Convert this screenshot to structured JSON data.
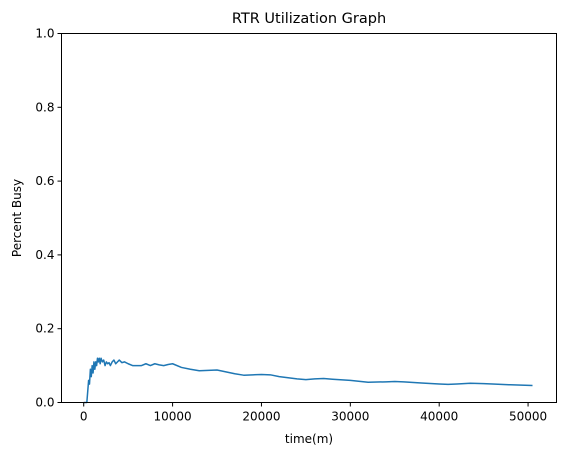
{
  "chart_data": {
    "type": "line",
    "title": "RTR Utilization Graph",
    "xlabel": "time(m)",
    "ylabel": "Percent Busy",
    "xlim": [
      -2500,
      53200
    ],
    "ylim": [
      0,
      1
    ],
    "xticks": [
      0,
      10000,
      20000,
      30000,
      40000,
      50000
    ],
    "xtick_labels": [
      "0",
      "10000",
      "20000",
      "30000",
      "40000",
      "50000"
    ],
    "yticks": [
      0,
      0.2,
      0.4,
      0.6,
      0.8,
      1.0
    ],
    "ytick_labels": [
      "0.0",
      "0.2",
      "0.4",
      "0.6",
      "0.8",
      "1.0"
    ],
    "grid": false,
    "legend": "none",
    "series": [
      {
        "color": "#1f77b4",
        "x": [
          0,
          150,
          250,
          350,
          450,
          550,
          650,
          750,
          850,
          950,
          1050,
          1150,
          1250,
          1350,
          1450,
          1550,
          1650,
          1750,
          1850,
          1950,
          2100,
          2250,
          2400,
          2550,
          2700,
          2850,
          3000,
          3200,
          3400,
          3600,
          3800,
          4000,
          4300,
          4600,
          5000,
          5500,
          6000,
          6500,
          7000,
          7500,
          8000,
          8500,
          9000,
          9500,
          10000,
          11000,
          12000,
          13000,
          14000,
          15000,
          16000,
          17000,
          18000,
          19000,
          20000,
          21000,
          22000,
          23000,
          24000,
          25000,
          26000,
          27000,
          28000,
          30000,
          32000,
          34000,
          35000,
          36000,
          38000,
          40000,
          41000,
          42000,
          43500,
          45000,
          46000,
          48000,
          50500
        ],
        "y": [
          0.0,
          0.0,
          0.0,
          0.0,
          0.03,
          0.06,
          0.05,
          0.09,
          0.07,
          0.1,
          0.08,
          0.11,
          0.09,
          0.11,
          0.1,
          0.12,
          0.11,
          0.12,
          0.105,
          0.12,
          0.11,
          0.115,
          0.1,
          0.11,
          0.105,
          0.108,
          0.1,
          0.11,
          0.115,
          0.105,
          0.11,
          0.115,
          0.108,
          0.11,
          0.105,
          0.1,
          0.1,
          0.1,
          0.105,
          0.1,
          0.105,
          0.102,
          0.1,
          0.103,
          0.105,
          0.095,
          0.09,
          0.086,
          0.087,
          0.088,
          0.083,
          0.078,
          0.074,
          0.075,
          0.076,
          0.075,
          0.07,
          0.067,
          0.064,
          0.062,
          0.064,
          0.065,
          0.063,
          0.06,
          0.055,
          0.056,
          0.057,
          0.056,
          0.053,
          0.05,
          0.049,
          0.05,
          0.052,
          0.051,
          0.05,
          0.048,
          0.046
        ]
      }
    ]
  }
}
